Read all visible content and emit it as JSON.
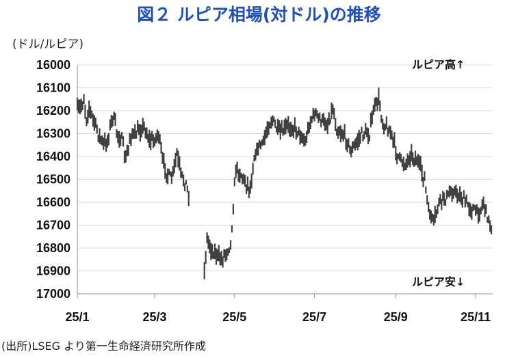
{
  "page": {
    "title": "図２ ルピア相場(対ドル)の推移",
    "unit": "(ドル/ルピア)",
    "source": "(出所)LSEG より第一生命経済研究所作成"
  },
  "colors": {
    "title": "#1f4fbf",
    "bars": "#404040",
    "grid": "#d9d9d9",
    "axis": "#8c8c8c"
  },
  "chart_data": {
    "type": "line",
    "title": "図２ ルピア相場(対ドル)の推移",
    "ylabel": "(ドル/ルピア)",
    "xlabel": "",
    "y_inverted": true,
    "ylim": [
      16000,
      17000
    ],
    "yticks": [
      16000,
      16100,
      16200,
      16300,
      16400,
      16500,
      16600,
      16700,
      16800,
      16900,
      17000
    ],
    "ytick_labels": [
      "16000",
      "16100",
      "16200",
      "16300",
      "16400",
      "16500",
      "16600",
      "16700",
      "16800",
      "16900",
      "17000"
    ],
    "xlim": [
      "2025-01-01",
      "2025-11-14"
    ],
    "xticks": [
      "2025-01-01",
      "2025-03-01",
      "2025-05-01",
      "2025-07-01",
      "2025-09-01",
      "2025-11-01"
    ],
    "xtick_labels": [
      "25/1",
      "25/3",
      "25/5",
      "25/7",
      "25/9",
      "25/11"
    ],
    "grid": true,
    "annotations": [
      {
        "text": "ルピア高↑",
        "position": "top-right"
      },
      {
        "text": "ルピア安↓",
        "position": "bottom-right"
      }
    ],
    "series": [
      {
        "x": [
          "2025-01-01",
          "2025-01-03",
          "2025-01-06",
          "2025-01-08",
          "2025-01-10",
          "2025-01-14",
          "2025-01-17",
          "2025-01-21",
          "2025-01-24",
          "2025-01-28",
          "2025-01-31",
          "2025-02-04",
          "2025-02-07",
          "2025-02-11",
          "2025-02-14",
          "2025-02-18",
          "2025-02-21",
          "2025-02-25",
          "2025-02-28",
          "2025-03-04",
          "2025-03-07",
          "2025-03-11",
          "2025-03-14",
          "2025-03-18",
          "2025-03-21",
          "2025-03-25",
          "2025-03-28",
          "2025-04-08",
          "2025-04-10",
          "2025-04-14",
          "2025-04-17",
          "2025-04-21",
          "2025-04-24",
          "2025-04-28",
          "2025-04-30",
          "2025-05-02",
          "2025-05-06",
          "2025-05-09",
          "2025-05-13",
          "2025-05-16",
          "2025-05-20",
          "2025-05-23",
          "2025-05-27",
          "2025-05-30",
          "2025-06-03",
          "2025-06-06",
          "2025-06-10",
          "2025-06-13",
          "2025-06-17",
          "2025-06-20",
          "2025-06-24",
          "2025-06-27",
          "2025-07-01",
          "2025-07-04",
          "2025-07-08",
          "2025-07-11",
          "2025-07-15",
          "2025-07-18",
          "2025-07-22",
          "2025-07-25",
          "2025-07-29",
          "2025-08-01",
          "2025-08-05",
          "2025-08-08",
          "2025-08-12",
          "2025-08-15",
          "2025-08-19",
          "2025-08-22",
          "2025-08-26",
          "2025-08-29",
          "2025-09-02",
          "2025-09-05",
          "2025-09-09",
          "2025-09-12",
          "2025-09-16",
          "2025-09-19",
          "2025-09-23",
          "2025-09-26",
          "2025-09-30",
          "2025-10-03",
          "2025-10-07",
          "2025-10-10",
          "2025-10-14",
          "2025-10-17",
          "2025-10-21",
          "2025-10-24",
          "2025-10-28",
          "2025-10-31",
          "2025-11-04",
          "2025-11-07",
          "2025-11-11",
          "2025-11-13"
        ],
        "y": [
          16200,
          16190,
          16150,
          16230,
          16190,
          16250,
          16300,
          16350,
          16330,
          16220,
          16290,
          16330,
          16420,
          16300,
          16310,
          16280,
          16270,
          16330,
          16330,
          16300,
          16420,
          16480,
          16500,
          16390,
          16480,
          16520,
          16590,
          16900,
          16760,
          16810,
          16830,
          16850,
          16820,
          16780,
          16620,
          16450,
          16480,
          16510,
          16540,
          16400,
          16350,
          16340,
          16260,
          16240,
          16290,
          16300,
          16270,
          16270,
          16280,
          16300,
          16340,
          16260,
          16210,
          16230,
          16250,
          16260,
          16190,
          16280,
          16300,
          16320,
          16380,
          16350,
          16310,
          16300,
          16300,
          16200,
          16150,
          16250,
          16280,
          16310,
          16390,
          16420,
          16430,
          16390,
          16410,
          16440,
          16500,
          16640,
          16690,
          16620,
          16580,
          16580,
          16550,
          16560,
          16580,
          16600,
          16620,
          16640,
          16640,
          16600,
          16680,
          16720
        ]
      }
    ]
  }
}
